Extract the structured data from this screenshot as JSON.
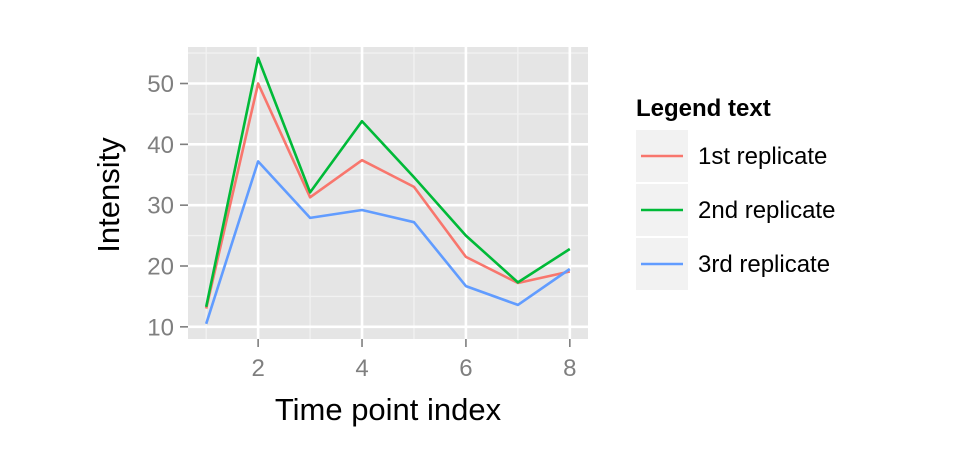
{
  "chart_data": {
    "type": "line",
    "xlabel": "Time point index",
    "ylabel": "Intensity",
    "x": [
      1,
      2,
      3,
      4,
      5,
      6,
      7,
      8
    ],
    "xticks": [
      2,
      4,
      6,
      8
    ],
    "yticks": [
      10,
      20,
      30,
      40,
      50
    ],
    "xlim": [
      0.65,
      8.35
    ],
    "ylim": [
      8,
      56
    ],
    "grid": true,
    "legend": {
      "title": "Legend text",
      "position": "right"
    },
    "series": [
      {
        "name": "1st replicate",
        "color": "#f8766d",
        "values": [
          13,
          50,
          31.3,
          37.4,
          33,
          21.5,
          17.2,
          19.1
        ]
      },
      {
        "name": "2nd replicate",
        "color": "#00ba38",
        "values": [
          13.3,
          54.2,
          32.1,
          43.8,
          34.6,
          25,
          17.3,
          22.8
        ]
      },
      {
        "name": "3rd replicate",
        "color": "#619cff",
        "values": [
          10.5,
          37.2,
          27.9,
          29.2,
          27.2,
          16.7,
          13.6,
          19.5
        ]
      }
    ]
  }
}
